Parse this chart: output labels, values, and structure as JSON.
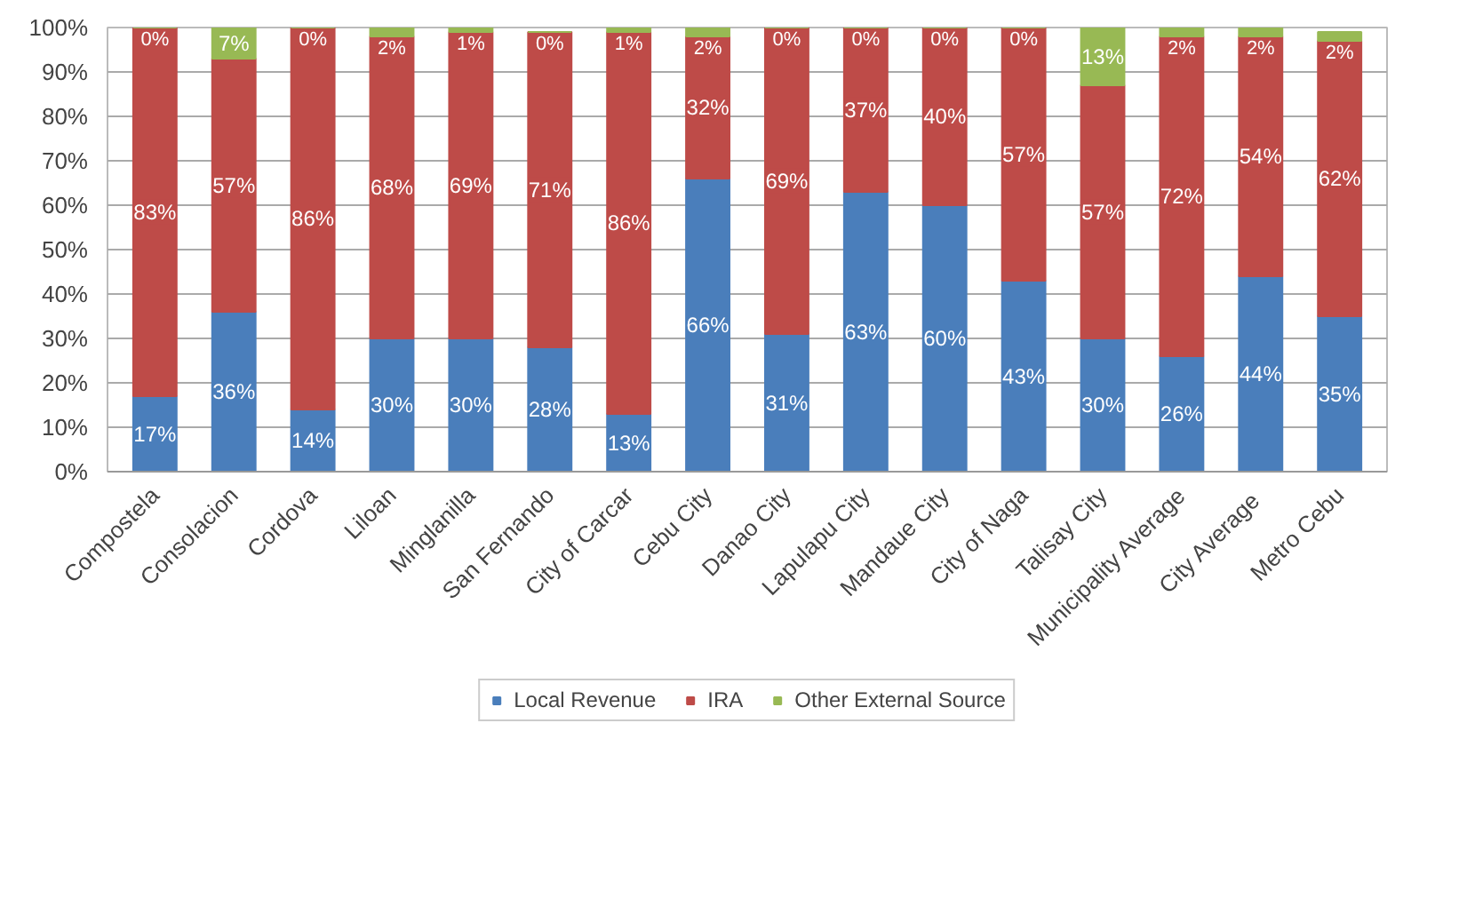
{
  "chart_data": {
    "type": "bar",
    "stacked": true,
    "categories": [
      "Compostela",
      "Consolacion",
      "Cordova",
      "Liloan",
      "Minglanilla",
      "San Fernando",
      "City of Carcar",
      "Cebu City",
      "Danao City",
      "Lapulapu City",
      "Mandaue City",
      "City of Naga",
      "Talisay City",
      "Municipality Average",
      "City  Average",
      "Metro Cebu"
    ],
    "series": [
      {
        "name": "Local Revenue",
        "color": "#4a7ebb",
        "values": [
          17,
          36,
          14,
          30,
          30,
          28,
          13,
          66,
          31,
          63,
          60,
          43,
          30,
          26,
          44,
          35
        ],
        "value_labels": [
          "17%",
          "36%",
          "14%",
          "30%",
          "30%",
          "28%",
          "13%",
          "66%",
          "31%",
          "63%",
          "60%",
          "43%",
          "30%",
          "26%",
          "44%",
          "35%"
        ]
      },
      {
        "name": "IRA",
        "color": "#be4b48",
        "values": [
          83,
          57,
          86,
          68,
          69,
          71,
          86,
          32,
          69,
          37,
          40,
          57,
          57,
          72,
          54,
          62
        ],
        "value_labels": [
          "83%",
          "57%",
          "86%",
          "68%",
          "69%",
          "71%",
          "86%",
          "32%",
          "69%",
          "37%",
          "40%",
          "57%",
          "57%",
          "72%",
          "54%",
          "62%"
        ]
      },
      {
        "name": "Other External Source",
        "color": "#98b954",
        "values": [
          0,
          7,
          0,
          2,
          1,
          0,
          1,
          2,
          0,
          0,
          0,
          0,
          13,
          2,
          2,
          2
        ],
        "value_labels": [
          "0%",
          "7%",
          "0%",
          "2%",
          "1%",
          "0%",
          "1%",
          "2%",
          "0%",
          "0%",
          "0%",
          "0%",
          "13%",
          "2%",
          "2%",
          "2%"
        ]
      }
    ],
    "ylim": [
      0,
      100
    ],
    "yticks": [
      {
        "value": 0,
        "label": "0%"
      },
      {
        "value": 10,
        "label": "10%"
      },
      {
        "value": 20,
        "label": "20%"
      },
      {
        "value": 30,
        "label": "30%"
      },
      {
        "value": 40,
        "label": "40%"
      },
      {
        "value": 50,
        "label": "50%"
      },
      {
        "value": 60,
        "label": "60%"
      },
      {
        "value": 70,
        "label": "70%"
      },
      {
        "value": 80,
        "label": "80%"
      },
      {
        "value": 90,
        "label": "90%"
      },
      {
        "value": 100,
        "label": "100%"
      }
    ],
    "grid": "y",
    "legend": "bottom"
  }
}
